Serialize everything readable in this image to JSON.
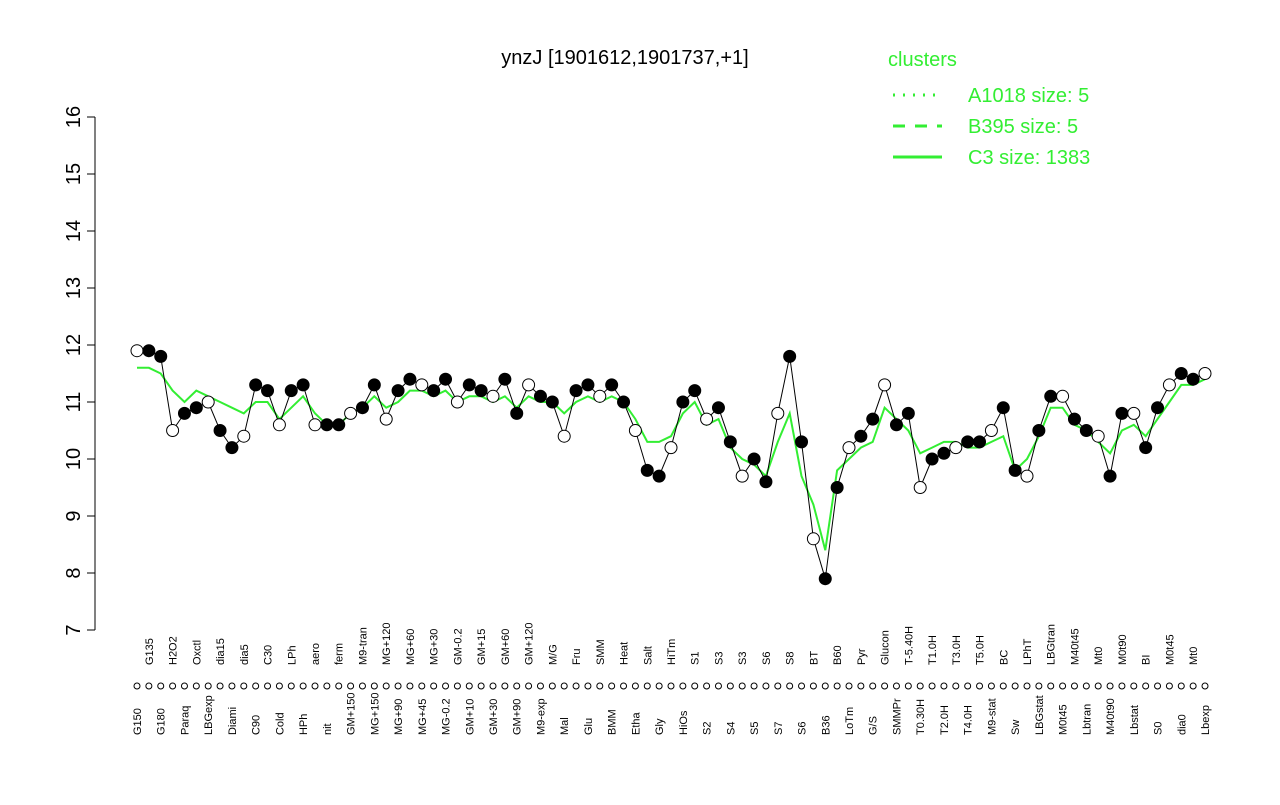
{
  "chart_data": {
    "type": "line",
    "title": "ynzJ [1901612,1901737,+1]",
    "categories": [
      "G150",
      "G135",
      "G180",
      "H2O2",
      "Paraq",
      "Oxctl",
      "LBGexp",
      "dia15",
      "Diami",
      "dia5",
      "C90",
      "C30",
      "Cold",
      "LPh",
      "HPh",
      "aero",
      "nit",
      "ferm",
      "GM+150",
      "M9-tran",
      "MG+150",
      "MG+120",
      "MG+90",
      "MG+60",
      "MG+45",
      "MG+30",
      "MG-0.2",
      "GM-0.2",
      "GM+10",
      "GM+15",
      "GM+30",
      "GM+60",
      "GM+90",
      "GM+120",
      "M9-exp",
      "M/G",
      "Mal",
      "Fru",
      "Glu",
      "SMM",
      "BMM",
      "Heat",
      "Etha",
      "Salt",
      "Gly",
      "HiTm",
      "HiOs",
      "S1",
      "S2",
      "S3",
      "S4",
      "S3",
      "S5",
      "S6",
      "S7",
      "S8",
      "S6",
      "BT",
      "B36",
      "B60",
      "LoTm",
      "Pyr",
      "G/S",
      "Glucon",
      "SMMPr",
      "T-5.40H",
      "T0.30H",
      "T1.0H",
      "T2.0H",
      "T3.0H",
      "T4.0H",
      "T5.0H",
      "M9-stat",
      "BC",
      "Sw",
      "LPhT",
      "LBGstat",
      "LBGtran",
      "M0t45",
      "M40t45",
      "Lbtran",
      "Mt0",
      "M40t90",
      "M0t90",
      "Lbstat",
      "BI",
      "S0",
      "M0t45",
      "dia0",
      "Mt0",
      "Lbexp"
    ],
    "values": [
      11.9,
      11.9,
      11.8,
      10.5,
      10.8,
      10.9,
      11.0,
      10.5,
      10.2,
      10.4,
      11.3,
      11.2,
      10.6,
      11.2,
      11.3,
      10.6,
      10.6,
      10.6,
      10.8,
      10.9,
      11.3,
      10.7,
      11.2,
      11.4,
      11.3,
      11.2,
      11.4,
      11.0,
      11.3,
      11.2,
      11.1,
      11.4,
      10.8,
      11.3,
      11.1,
      11.0,
      10.4,
      11.2,
      11.3,
      11.1,
      11.3,
      11.0,
      10.5,
      9.8,
      9.7,
      10.2,
      11.0,
      11.2,
      10.7,
      10.9,
      10.3,
      9.7,
      10.0,
      9.6,
      10.8,
      11.8,
      10.3,
      8.6,
      7.9,
      9.5,
      10.2,
      10.4,
      10.7,
      11.3,
      10.6,
      10.8,
      9.5,
      10.0,
      10.1,
      10.2,
      10.3,
      10.3,
      10.5,
      10.9,
      9.8,
      9.7,
      10.5,
      11.1,
      11.1,
      10.7,
      10.5,
      10.4,
      9.7,
      10.8,
      10.8,
      10.2,
      10.9,
      11.3,
      11.5,
      11.4,
      11.5
    ],
    "cluster_mean": [
      11.6,
      11.6,
      11.5,
      11.2,
      11.0,
      11.2,
      11.1,
      11.0,
      10.9,
      10.8,
      11.0,
      11.0,
      10.7,
      10.9,
      11.1,
      10.8,
      10.6,
      10.6,
      10.8,
      10.9,
      11.1,
      10.9,
      11.0,
      11.2,
      11.2,
      11.1,
      11.2,
      11.0,
      11.1,
      11.1,
      11.0,
      11.1,
      10.9,
      11.1,
      11.0,
      11.0,
      10.8,
      11.0,
      11.1,
      11.0,
      11.1,
      11.0,
      10.7,
      10.3,
      10.3,
      10.4,
      10.8,
      11.0,
      10.6,
      10.7,
      10.2,
      10.0,
      9.9,
      9.7,
      10.3,
      10.8,
      9.7,
      9.2,
      8.4,
      9.8,
      10.0,
      10.2,
      10.3,
      10.9,
      10.7,
      10.5,
      10.1,
      10.2,
      10.3,
      10.3,
      10.2,
      10.2,
      10.3,
      10.4,
      9.8,
      10.0,
      10.4,
      10.9,
      10.9,
      10.6,
      10.5,
      10.3,
      10.1,
      10.5,
      10.6,
      10.4,
      10.7,
      11.0,
      11.3,
      11.3,
      11.4
    ],
    "point_color": "#000000",
    "cluster_color": "#33ee33",
    "ylim": [
      7,
      16
    ],
    "yticks": [
      7,
      8,
      9,
      10,
      11,
      12,
      13,
      14,
      15,
      16
    ],
    "legend": {
      "title": "clusters",
      "position": "top-right",
      "entries": [
        {
          "label": "A1018 size: 5",
          "dash": "dotted"
        },
        {
          "label": "B395 size: 5",
          "dash": "dashed"
        },
        {
          "label": "C3 size: 1383",
          "dash": "solid"
        }
      ]
    }
  }
}
